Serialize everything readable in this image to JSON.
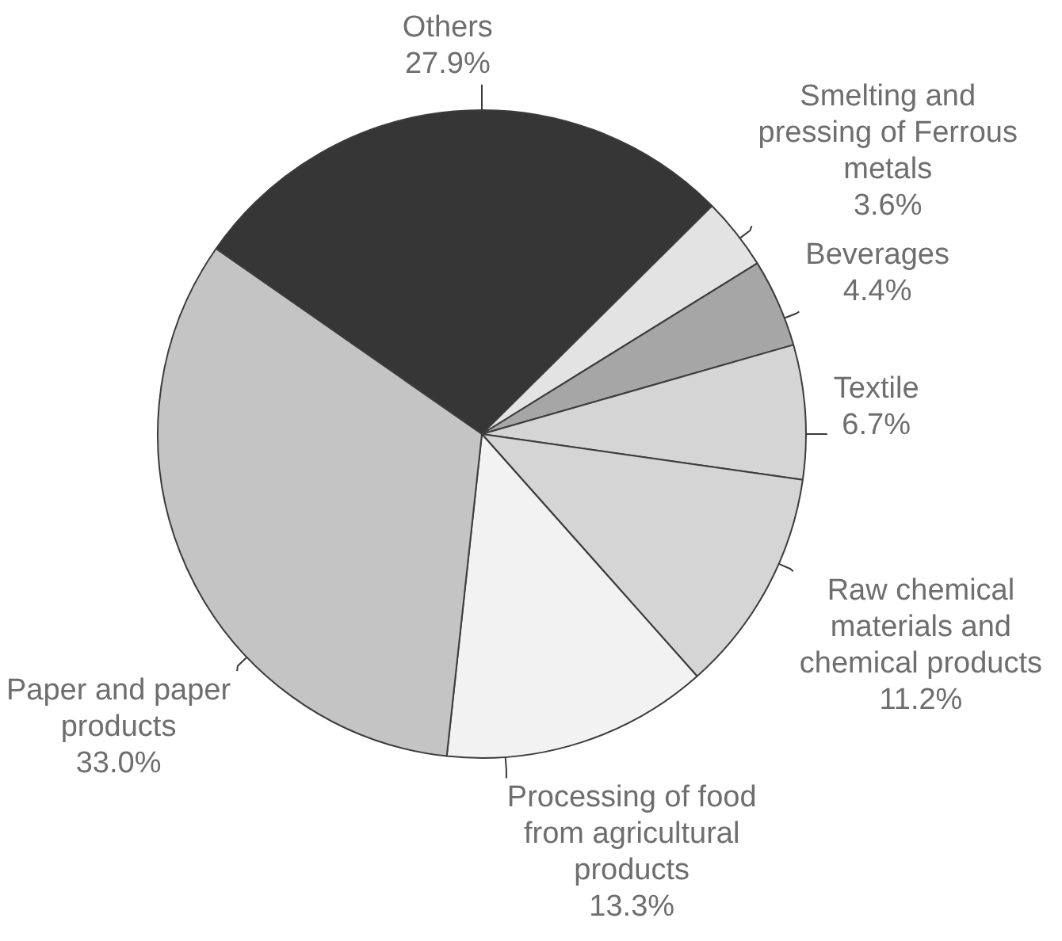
{
  "chart_data": {
    "type": "pie",
    "categories": [
      "Others",
      "Smelting and pressing of Ferrous metals",
      "Beverages",
      "Textile",
      "Raw chemical materials and chemical products",
      "Processing of food from agricultural products",
      "Paper and paper products"
    ],
    "values": [
      27.9,
      3.6,
      4.4,
      6.7,
      11.2,
      13.3,
      33.0
    ],
    "value_labels": [
      "27.9%",
      "3.6%",
      "4.4%",
      "6.7%",
      "11.2%",
      "13.3%",
      "33.0%"
    ],
    "colors": [
      "#363636",
      "#e3e3e3",
      "#a6a6a6",
      "#d5d5d5",
      "#d5d5d5",
      "#f2f2f2",
      "#c4c4c4"
    ]
  }
}
